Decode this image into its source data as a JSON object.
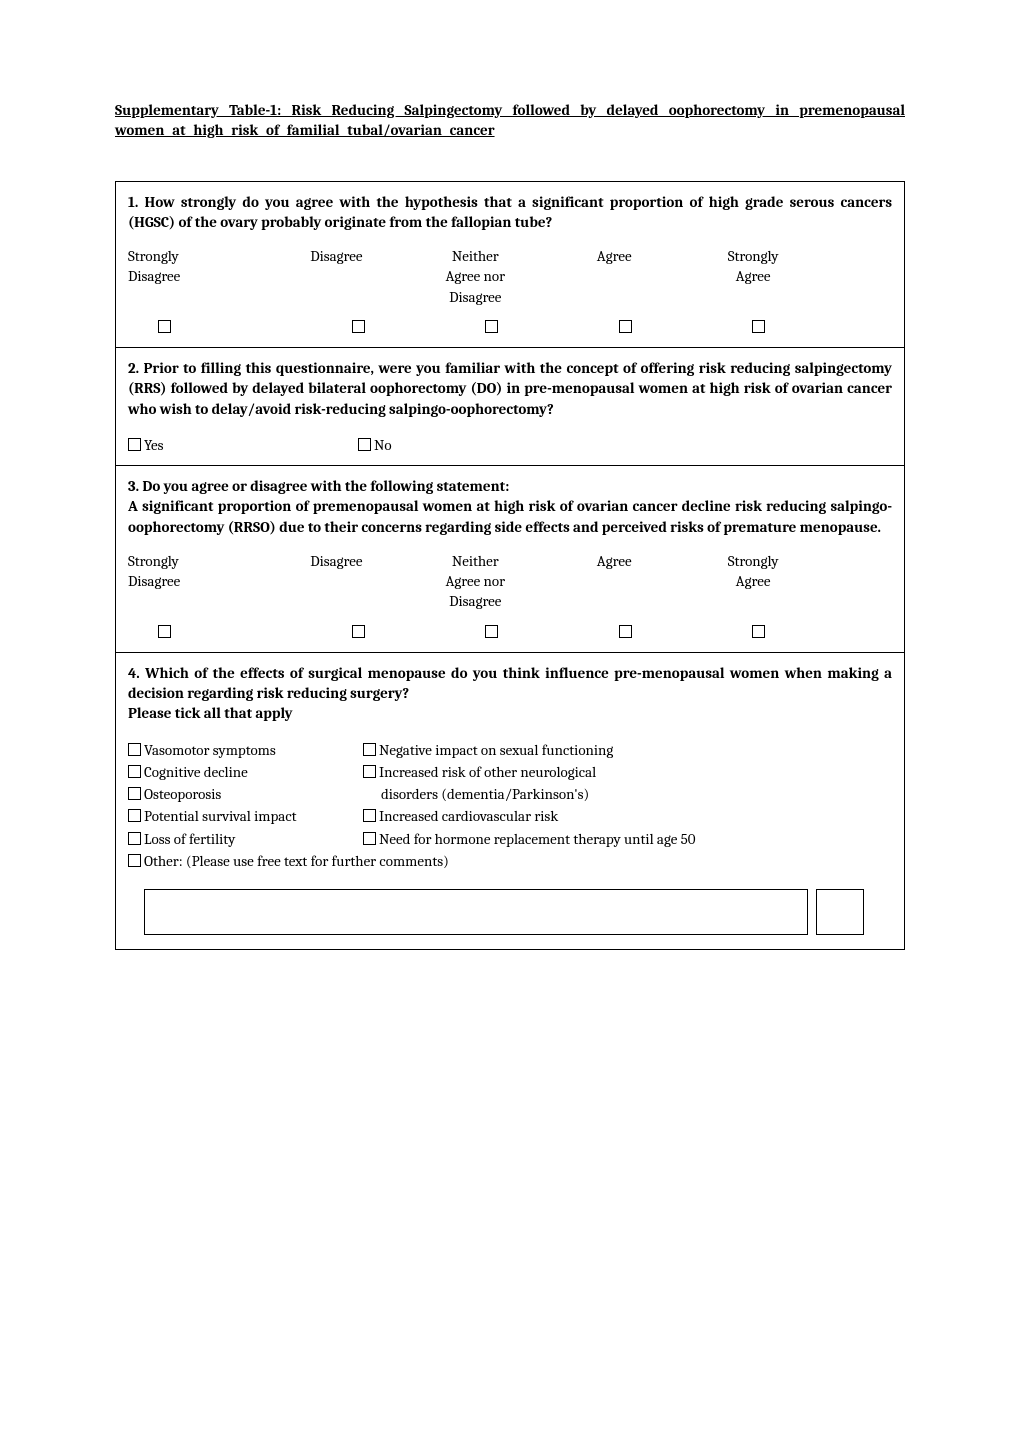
{
  "title": "Supplementary Table-1: Risk Reducing Salpingectomy followed by delayed oophorectomy in premenopausal women at high risk of familial tubal/ovarian cancer",
  "q1": {
    "text": "1. How strongly do you agree with the hypothesis that a significant proportion of high grade serous cancers (HGSC) of the ovary probably originate from the fallopian tube?",
    "scale": {
      "opt1a": "Strongly",
      "opt1b": "Disagree",
      "opt2": "Disagree",
      "opt3a": "Neither",
      "opt3b": "Agree nor",
      "opt3c": "Disagree",
      "opt4": "Agree",
      "opt5a": "Strongly",
      "opt5b": "Agree"
    }
  },
  "q2": {
    "text": "2. Prior to filling this questionnaire, were you familiar with the concept of offering risk reducing salpingectomy (RRS) followed by delayed bilateral oophorectomy (DO) in pre-menopausal women at high risk of ovarian cancer who wish to delay/avoid risk-reducing salpingo-oophorectomy?",
    "yes": "Yes",
    "no": "No"
  },
  "q3": {
    "text_line1": "3. Do you agree or disagree with the following statement:",
    "text_line2": "A significant proportion of premenopausal women at high risk of ovarian cancer decline risk reducing salpingo-oophorectomy (RRSO) due to their concerns regarding side effects and perceived risks of premature menopause.",
    "scale": {
      "opt1a": "Strongly",
      "opt1b": "Disagree",
      "opt2": "Disagree",
      "opt3a": "Neither",
      "opt3b": "Agree nor",
      "opt3c": "Disagree",
      "opt4": "Agree",
      "opt5a": "Strongly",
      "opt5b": "Agree"
    }
  },
  "q4": {
    "text_line1": "4. Which of the effects of surgical menopause do you think influence pre-menopausal women when making a decision regarding risk reducing surgery?",
    "text_line2": "Please tick all that apply",
    "left": {
      "a": "Vasomotor symptoms",
      "b": "Cognitive decline",
      "c": "Osteoporosis",
      "d": "Potential survival impact",
      "e": "Loss of fertility"
    },
    "right": {
      "a": "Negative impact on sexual functioning",
      "b": "Increased risk of other neurological",
      "b2": "disorders  (dementia/Parkinson's)",
      "c": "Increased cardiovascular risk",
      "d": " Need for hormone replacement therapy until age 50"
    },
    "other": "Other: (Please use free text for further comments)"
  }
}
